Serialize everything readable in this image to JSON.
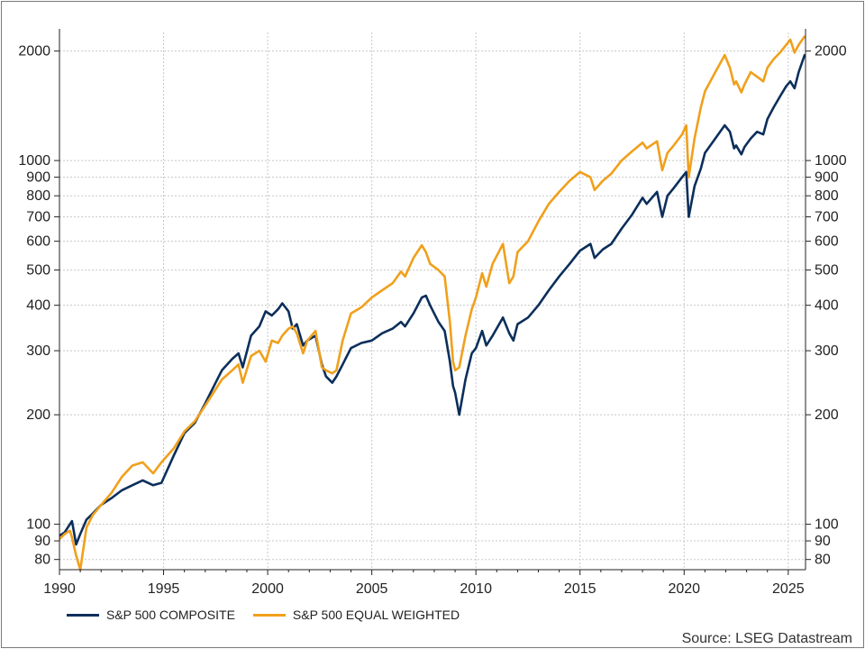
{
  "chart_data": {
    "type": "line",
    "title": "",
    "xlabel": "",
    "ylabel": "",
    "y_scale": "log",
    "ylim": [
      75,
      2250
    ],
    "xlim": [
      1990.0,
      2025.83
    ],
    "grid": true,
    "legend_position": "bottom-left",
    "x_ticks": [
      "1990",
      "1995",
      "2000",
      "2005",
      "2010",
      "2015",
      "2020",
      "2025"
    ],
    "y_ticks": [
      "80",
      "90",
      "100",
      "200",
      "300",
      "400",
      "500",
      "600",
      "700",
      "800",
      "900",
      "1000",
      "2000"
    ],
    "series": [
      {
        "name": "S&P 500 COMPOSITE",
        "color": "#0b2f5b",
        "x": [
          1990.0,
          1990.25,
          1990.5,
          1990.6,
          1990.8,
          1991.0,
          1991.3,
          1991.6,
          1992.0,
          1992.5,
          1993.0,
          1993.5,
          1994.0,
          1994.5,
          1994.9,
          1995.5,
          1996.0,
          1996.5,
          1997.0,
          1997.5,
          1997.8,
          1998.3,
          1998.6,
          1998.8,
          1999.2,
          1999.6,
          1999.9,
          2000.2,
          2000.5,
          2000.7,
          2001.0,
          2001.2,
          2001.4,
          2001.7,
          2001.9,
          2002.3,
          2002.6,
          2002.8,
          2003.1,
          2003.3,
          2003.6,
          2004.0,
          2004.5,
          2005.0,
          2005.5,
          2006.0,
          2006.4,
          2006.6,
          2007.0,
          2007.4,
          2007.6,
          2007.8,
          2008.2,
          2008.5,
          2008.75,
          2008.9,
          2009.0,
          2009.2,
          2009.5,
          2009.8,
          2010.0,
          2010.3,
          2010.5,
          2010.8,
          2011.3,
          2011.6,
          2011.8,
          2012.0,
          2012.5,
          2013.0,
          2013.5,
          2014.0,
          2014.5,
          2015.0,
          2015.5,
          2015.7,
          2016.1,
          2016.5,
          2017.0,
          2017.5,
          2018.0,
          2018.2,
          2018.7,
          2018.95,
          2019.2,
          2019.5,
          2019.9,
          2020.1,
          2020.22,
          2020.5,
          2020.8,
          2021.0,
          2021.5,
          2021.95,
          2022.2,
          2022.4,
          2022.5,
          2022.75,
          2022.9,
          2023.2,
          2023.5,
          2023.8,
          2024.0,
          2024.3,
          2024.6,
          2024.9,
          2025.1,
          2025.3,
          2025.5,
          2025.8
        ],
        "values": [
          93,
          95,
          100,
          102,
          88,
          94,
          103,
          107,
          113,
          118,
          124,
          128,
          132,
          128,
          130,
          155,
          178,
          190,
          215,
          245,
          265,
          285,
          295,
          270,
          330,
          350,
          385,
          375,
          390,
          405,
          385,
          345,
          355,
          310,
          320,
          330,
          275,
          255,
          245,
          255,
          275,
          305,
          315,
          320,
          335,
          345,
          360,
          350,
          380,
          420,
          425,
          400,
          360,
          340,
          280,
          240,
          230,
          200,
          250,
          295,
          305,
          340,
          310,
          330,
          370,
          335,
          320,
          355,
          370,
          400,
          440,
          480,
          520,
          565,
          590,
          540,
          570,
          590,
          650,
          710,
          790,
          760,
          820,
          700,
          800,
          840,
          900,
          930,
          700,
          850,
          950,
          1050,
          1150,
          1250,
          1200,
          1080,
          1100,
          1040,
          1090,
          1150,
          1200,
          1180,
          1300,
          1400,
          1500,
          1600,
          1650,
          1580,
          1750,
          1960
        ]
      },
      {
        "name": "S&P 500 EQUAL WEIGHTED",
        "color": "#f0a01c",
        "x": [
          1990.0,
          1990.25,
          1990.5,
          1990.6,
          1990.8,
          1991.0,
          1991.3,
          1991.6,
          1992.0,
          1992.5,
          1993.0,
          1993.5,
          1994.0,
          1994.5,
          1994.9,
          1995.5,
          1996.0,
          1996.5,
          1997.0,
          1997.5,
          1997.8,
          1998.3,
          1998.6,
          1998.8,
          1999.2,
          1999.6,
          1999.9,
          2000.2,
          2000.5,
          2000.7,
          2001.0,
          2001.2,
          2001.4,
          2001.7,
          2001.9,
          2002.3,
          2002.6,
          2002.8,
          2003.1,
          2003.3,
          2003.6,
          2004.0,
          2004.5,
          2005.0,
          2005.5,
          2006.0,
          2006.4,
          2006.6,
          2007.0,
          2007.4,
          2007.6,
          2007.8,
          2008.2,
          2008.5,
          2008.75,
          2008.9,
          2009.0,
          2009.2,
          2009.5,
          2009.8,
          2010.0,
          2010.3,
          2010.5,
          2010.8,
          2011.3,
          2011.6,
          2011.8,
          2012.0,
          2012.5,
          2013.0,
          2013.5,
          2014.0,
          2014.5,
          2015.0,
          2015.5,
          2015.7,
          2016.1,
          2016.5,
          2017.0,
          2017.5,
          2018.0,
          2018.2,
          2018.7,
          2018.95,
          2019.2,
          2019.5,
          2019.9,
          2020.1,
          2020.22,
          2020.5,
          2020.8,
          2021.0,
          2021.5,
          2021.95,
          2022.2,
          2022.4,
          2022.5,
          2022.75,
          2022.9,
          2023.2,
          2023.5,
          2023.8,
          2024.0,
          2024.3,
          2024.6,
          2024.9,
          2025.1,
          2025.3,
          2025.5,
          2025.8
        ],
        "values": [
          91,
          94,
          96,
          92,
          82,
          75,
          98,
          106,
          113,
          122,
          135,
          145,
          148,
          138,
          148,
          162,
          180,
          192,
          212,
          235,
          250,
          265,
          275,
          245,
          290,
          300,
          280,
          320,
          315,
          330,
          345,
          350,
          335,
          295,
          320,
          340,
          270,
          265,
          260,
          265,
          320,
          380,
          395,
          420,
          440,
          460,
          495,
          480,
          540,
          585,
          560,
          520,
          500,
          480,
          360,
          280,
          265,
          270,
          330,
          390,
          420,
          490,
          450,
          520,
          590,
          460,
          480,
          560,
          600,
          680,
          760,
          820,
          880,
          930,
          900,
          830,
          880,
          920,
          1000,
          1060,
          1120,
          1080,
          1130,
          940,
          1050,
          1100,
          1180,
          1250,
          900,
          1150,
          1400,
          1550,
          1750,
          1950,
          1800,
          1620,
          1650,
          1540,
          1620,
          1750,
          1700,
          1650,
          1800,
          1900,
          1980,
          2080,
          2150,
          1980,
          2080,
          2200
        ]
      }
    ]
  },
  "legend": {
    "composite_label": "S&P 500 COMPOSITE",
    "equal_label": "S&P 500 EQUAL WEIGHTED"
  },
  "source": "Source: LSEG Datastream",
  "colors": {
    "composite": "#0b2f5b",
    "equal": "#f0a01c",
    "grid": "#c8c8c8",
    "axis": "#222222"
  }
}
